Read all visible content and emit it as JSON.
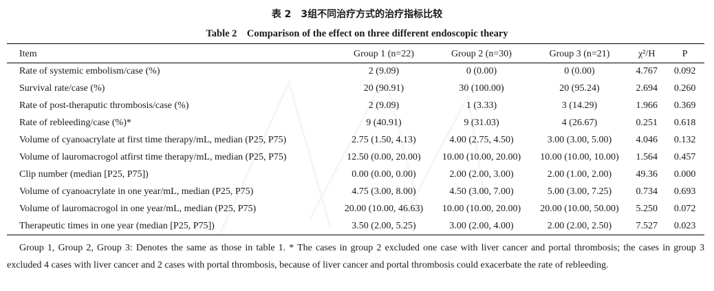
{
  "title_cn": "表 2　3组不同治疗方式的治疗指标比较",
  "title_en": "Table 2　Comparison of the effect on three different endoscopic theary",
  "columns": [
    "Item",
    "Group 1 (n=22)",
    "Group 2 (n=30)",
    "Group 3 (n=21)",
    "χ²/H",
    "P"
  ],
  "rows": [
    {
      "item": "Rate of systemic embolism/case (%)",
      "g1": "2 (9.09)",
      "g2": "0 (0.00)",
      "g3": "0 (0.00)",
      "chi": "4.767",
      "p": "0.092"
    },
    {
      "item": "Survival rate/case (%)",
      "g1": "20 (90.91)",
      "g2": "30 (100.00)",
      "g3": "20 (95.24)",
      "chi": "2.694",
      "p": "0.260"
    },
    {
      "item": "Rate of post-theraputic thrombosis/case (%)",
      "g1": "2 (9.09)",
      "g2": "1 (3.33)",
      "g3": "3 (14.29)",
      "chi": "1.966",
      "p": "0.369"
    },
    {
      "item": "Rate of rebleeding/case (%)*",
      "g1": "9 (40.91)",
      "g2": "9 (31.03)",
      "g3": "4 (26.67)",
      "chi": "0.251",
      "p": "0.618"
    },
    {
      "item": "Volume of cyanoacrylate at first time therapy/mL, median (P25, P75)",
      "g1": "2.75 (1.50, 4.13)",
      "g2": "4.00 (2.75, 4.50)",
      "g3": "3.00 (3.00, 5.00)",
      "chi": "4.046",
      "p": "0.132"
    },
    {
      "item": "Volume of lauromacrogol atfirst time therapy/mL, median (P25, P75)",
      "g1": "12.50 (0.00, 20.00)",
      "g2": "10.00 (10.00, 20.00)",
      "g3": "10.00 (10.00, 10.00)",
      "chi": "1.564",
      "p": "0.457"
    },
    {
      "item": "Clip number (median [P25, P75])",
      "g1": "0.00 (0.00, 0.00)",
      "g2": "2.00 (2.00, 3.00)",
      "g3": "2.00 (1.00, 2.00)",
      "chi": "49.36",
      "p": "0.000"
    },
    {
      "item": "Volume of cyanoacrylate in one year/mL, median (P25, P75)",
      "g1": "4.75 (3.00, 8.00)",
      "g2": "4.50 (3.00, 7.00)",
      "g3": "5.00 (3.00, 7.25)",
      "chi": "0.734",
      "p": "0.693"
    },
    {
      "item": "Volume of lauromacrogol in one year/mL, median (P25, P75)",
      "g1": "20.00 (10.00, 46.63)",
      "g2": "10.00 (10.00, 20.00)",
      "g3": "20.00 (10.00, 50.00)",
      "chi": "5.250",
      "p": "0.072"
    },
    {
      "item": "Therapeutic times in one year (median [P25, P75])",
      "g1": "3.50 (2.00, 5.25)",
      "g2": "3.00 (2.00, 4.00)",
      "g3": "2.00 (2.00, 2.50)",
      "chi": "7.527",
      "p": "0.023"
    }
  ],
  "footnote": "Group 1, Group 2, Group 3: Denotes the same as those in table 1. * The cases in group 2 excluded one case with liver cancer and portal thrombosis; the cases in group 3 excluded 4 cases with liver cancer and 2 cases with portal thrombosis, because of liver cancer and portal thrombosis could exacerbate the rate of rebleeding."
}
